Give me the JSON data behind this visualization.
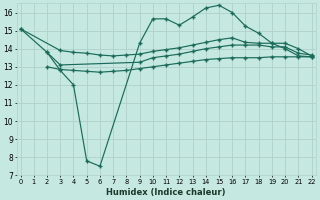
{
  "xlabel": "Humidex (Indice chaleur)",
  "xlim": [
    -0.3,
    22.3
  ],
  "ylim": [
    7,
    16.5
  ],
  "yticks": [
    7,
    8,
    9,
    10,
    11,
    12,
    13,
    14,
    15,
    16
  ],
  "bg_color": "#c5e8e0",
  "grid_color": "#b0d0cc",
  "line_color": "#1a6b5a",
  "series1_x": [
    0,
    3
  ],
  "series1_y": [
    15.1,
    13.9
  ],
  "series2_x": [
    0,
    2,
    3,
    4,
    5,
    6,
    9,
    10,
    11,
    12,
    13,
    14,
    15,
    16,
    17,
    18,
    19,
    20,
    21,
    22
  ],
  "series2_y": [
    15.1,
    13.8,
    12.8,
    12.0,
    7.8,
    7.5,
    14.3,
    15.65,
    15.65,
    15.3,
    15.75,
    16.25,
    16.4,
    16.0,
    15.25,
    14.85,
    14.3,
    14.0,
    13.6,
    13.55
  ],
  "series3_x": [
    0,
    3,
    4,
    5,
    6,
    7,
    8,
    9,
    10,
    11,
    12,
    13,
    14,
    15,
    16,
    17,
    18,
    19,
    20,
    21,
    22
  ],
  "series3_y": [
    15.1,
    13.9,
    13.8,
    13.75,
    13.65,
    13.6,
    13.65,
    13.7,
    13.85,
    13.95,
    14.05,
    14.2,
    14.35,
    14.5,
    14.6,
    14.35,
    14.3,
    14.3,
    14.3,
    14.0,
    13.6
  ],
  "series4_x": [
    2,
    3,
    9,
    10,
    11,
    12,
    13,
    14,
    15,
    16,
    17,
    18,
    19,
    20,
    21,
    22
  ],
  "series4_y": [
    13.8,
    13.1,
    13.25,
    13.5,
    13.6,
    13.7,
    13.85,
    14.0,
    14.1,
    14.2,
    14.2,
    14.2,
    14.1,
    14.1,
    13.75,
    13.65
  ],
  "series5_x": [
    2,
    3,
    4,
    5,
    6,
    7,
    8,
    9,
    10,
    11,
    12,
    13,
    14,
    15,
    16,
    17,
    18,
    19,
    20,
    21,
    22
  ],
  "series5_y": [
    13.0,
    12.85,
    12.8,
    12.75,
    12.7,
    12.75,
    12.8,
    12.9,
    13.0,
    13.1,
    13.2,
    13.3,
    13.4,
    13.45,
    13.5,
    13.5,
    13.5,
    13.55,
    13.55,
    13.55,
    13.55
  ]
}
